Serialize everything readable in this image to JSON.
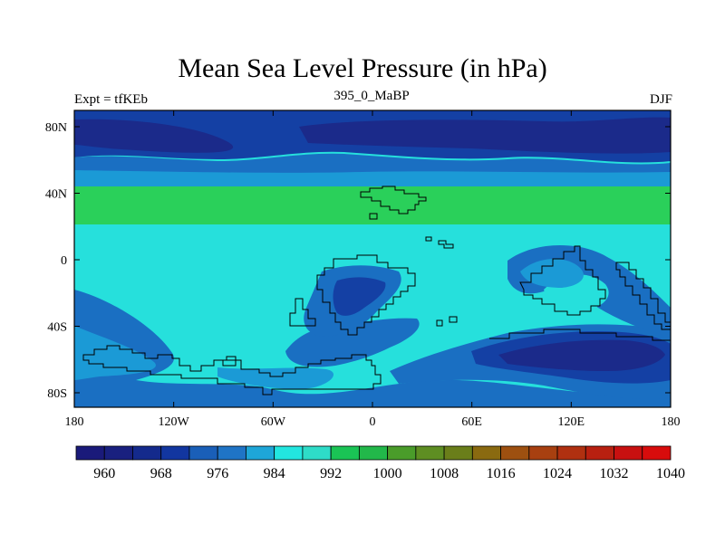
{
  "title": "Mean Sea Level Pressure (in hPa)",
  "left_label": "Expt = tfKEb",
  "center_label": "395_0_MaBP",
  "right_label": "DJF",
  "chart_data": {
    "type": "heatmap",
    "map": "global lat-lon filled contour",
    "x_ticks": [
      "180",
      "120W",
      "60W",
      "0",
      "60E",
      "120E",
      "180"
    ],
    "y_ticks": [
      "80N",
      "40N",
      "0",
      "40S",
      "80S"
    ],
    "colorbar": {
      "labels": [
        "960",
        "968",
        "976",
        "984",
        "992",
        "1000",
        "1008",
        "1016",
        "1024",
        "1032",
        "1040"
      ],
      "colors": [
        "#1a1a7a",
        "#19207f",
        "#142a8c",
        "#1236a0",
        "#1a5fb8",
        "#1f74c6",
        "#1ea6d8",
        "#22e6e0",
        "#2edcc8",
        "#1ac455",
        "#22b84a",
        "#4a9c2a",
        "#5e8e22",
        "#6a7e1a",
        "#8a6a10",
        "#9e5010",
        "#a84010",
        "#b03010",
        "#b82010",
        "#c81010",
        "#d80c0c"
      ]
    },
    "fill_colors": {
      "very_low": "#1b2a8a",
      "low": "#1440a4",
      "mid_low": "#1a6fc2",
      "medium": "#1b9ad6",
      "base": "#26e0dc",
      "green": "#2ad05a"
    }
  }
}
